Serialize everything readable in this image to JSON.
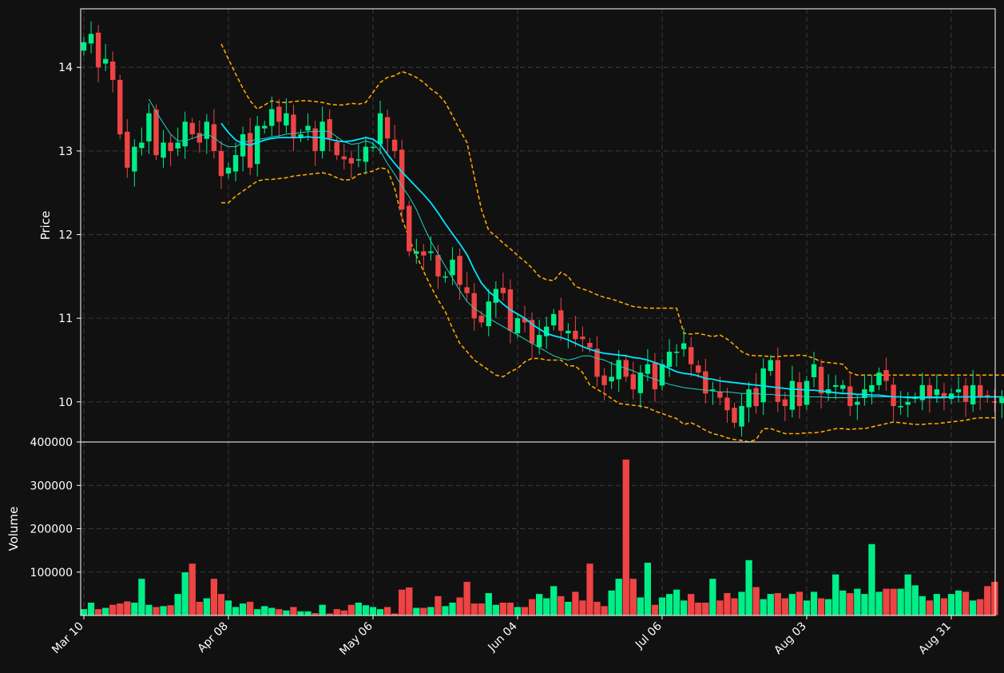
{
  "colors": {
    "background": "#111111",
    "up": "#00ee88",
    "down": "#ee4444",
    "ma_fast": "#00e5ff",
    "ma_slow": "#20d3c0",
    "band": "#ffa500",
    "grid": "#3a3a3a",
    "axis": "#ffffff",
    "text": "#ffffff"
  },
  "chart_data": [
    {
      "type": "candlestick",
      "panel": "price",
      "ylabel": "Price",
      "yticks": [
        10,
        11,
        12,
        13,
        14
      ],
      "ylim": [
        9.52,
        14.7
      ],
      "x_tick_labels": [
        "Mar 10",
        "Apr 08",
        "May 06",
        "Jun 04",
        "Jul 06",
        "Aug 03",
        "Aug 31"
      ],
      "x_tick_indices": [
        0,
        20,
        40,
        60,
        80,
        100,
        120
      ],
      "grid": true,
      "closes": [
        14.3,
        14.4,
        14.0,
        14.1,
        13.85,
        13.2,
        12.8,
        13.05,
        13.1,
        13.45,
        12.95,
        13.1,
        13.0,
        13.1,
        13.35,
        13.2,
        13.1,
        13.35,
        13.0,
        12.7,
        12.8,
        12.95,
        13.2,
        12.8,
        13.3,
        13.3,
        13.5,
        13.35,
        13.45,
        13.15,
        13.2,
        13.3,
        13.0,
        13.35,
        13.15,
        12.95,
        12.9,
        12.85,
        12.9,
        13.05,
        13.05,
        13.45,
        13.15,
        13.0,
        12.3,
        11.8,
        11.8,
        11.75,
        11.8,
        11.5,
        11.5,
        11.7,
        11.4,
        11.3,
        11.0,
        10.95,
        11.2,
        11.35,
        11.3,
        10.85,
        11.0,
        10.95,
        10.7,
        10.8,
        10.9,
        11.05,
        10.85,
        10.85,
        10.75,
        10.75,
        10.65,
        10.3,
        10.2,
        10.3,
        10.5,
        10.3,
        10.15,
        10.35,
        10.45,
        10.15,
        10.45,
        10.6,
        10.6,
        10.7,
        10.45,
        10.35,
        10.1,
        10.15,
        10.05,
        9.9,
        9.75,
        9.95,
        10.15,
        9.95,
        10.4,
        10.5,
        10.0,
        9.95,
        10.25,
        9.95,
        10.25,
        10.45,
        10.1,
        10.15,
        10.2,
        10.2,
        9.95,
        10.0,
        10.15,
        10.2,
        10.35,
        10.25,
        9.95,
        9.95,
        10.0,
        10.05,
        10.2,
        10.05,
        10.15,
        10.05,
        10.1,
        10.15,
        10.0,
        10.2,
        10.05,
        10.05,
        10.0,
        10.05
      ],
      "ma_fast": [
        null,
        null,
        null,
        null,
        null,
        null,
        null,
        null,
        null,
        null,
        null,
        null,
        null,
        null,
        null,
        null,
        null,
        null,
        null,
        13.33,
        13.22,
        13.13,
        13.09,
        13.07,
        13.1,
        13.13,
        13.15,
        13.16,
        13.16,
        13.16,
        13.16,
        13.17,
        13.16,
        13.16,
        13.14,
        13.12,
        13.11,
        13.12,
        13.14,
        13.16,
        13.14,
        13.08,
        12.96,
        12.85,
        12.75,
        12.66,
        12.57,
        12.48,
        12.38,
        12.26,
        12.13,
        12.01,
        11.89,
        11.76,
        11.58,
        11.42,
        11.32,
        11.25,
        11.17,
        11.1,
        11.05,
        11.0,
        10.93,
        10.87,
        10.82,
        10.79,
        10.77,
        10.74,
        10.7,
        10.66,
        10.63,
        10.6,
        10.58,
        10.57,
        10.56,
        10.55,
        10.53,
        10.52,
        10.5,
        10.47,
        10.44,
        10.4,
        10.36,
        10.34,
        10.33,
        10.31,
        10.28,
        10.27,
        10.25,
        10.24,
        10.23,
        10.22,
        10.21,
        10.2,
        10.19,
        10.18,
        10.17,
        10.16,
        10.15,
        10.15,
        10.14,
        10.14,
        10.13,
        10.12,
        10.11,
        10.1,
        10.1,
        10.09,
        10.09,
        10.08,
        10.08,
        10.07,
        10.06,
        10.06,
        10.05,
        10.05,
        10.05,
        10.05,
        10.05,
        10.05,
        10.06,
        10.06,
        10.06,
        10.06,
        10.06,
        10.06,
        10.06,
        10.06
      ],
      "ma_slow": [
        null,
        null,
        null,
        null,
        null,
        null,
        null,
        null,
        null,
        13.62,
        13.47,
        13.33,
        13.2,
        13.12,
        13.12,
        13.15,
        13.18,
        13.2,
        13.16,
        13.09,
        13.05,
        13.05,
        13.1,
        13.12,
        13.14,
        13.15,
        13.17,
        13.18,
        13.2,
        13.21,
        13.22,
        13.23,
        13.23,
        13.24,
        13.23,
        13.17,
        13.11,
        13.08,
        13.09,
        13.12,
        13.09,
        13.0,
        12.85,
        12.72,
        12.58,
        12.45,
        12.3,
        12.1,
        11.92,
        11.77,
        11.62,
        11.48,
        11.33,
        11.2,
        11.12,
        11.06,
        11.0,
        10.95,
        10.9,
        10.85,
        10.8,
        10.75,
        10.7,
        10.65,
        10.6,
        10.55,
        10.52,
        10.5,
        10.52,
        10.55,
        10.55,
        10.52,
        10.5,
        10.46,
        10.43,
        10.4,
        10.37,
        10.33,
        10.3,
        10.27,
        10.24,
        10.21,
        10.19,
        10.17,
        10.16,
        10.15,
        10.14,
        10.13,
        10.12,
        10.12,
        10.11,
        10.1,
        10.1,
        10.1,
        10.09,
        10.09,
        10.08,
        10.08,
        10.07,
        10.07,
        10.06,
        10.06,
        10.06,
        10.05,
        10.05,
        10.05,
        10.05,
        10.05,
        10.06,
        10.06,
        10.06,
        10.06,
        10.06,
        10.06,
        10.06,
        10.06,
        10.06,
        10.06,
        10.06,
        10.06,
        10.06,
        10.06,
        10.06,
        10.06,
        10.06,
        10.06,
        10.06,
        10.06,
        10.06
      ],
      "band_upper": [
        null,
        null,
        null,
        null,
        null,
        null,
        null,
        null,
        null,
        null,
        null,
        null,
        null,
        null,
        null,
        null,
        null,
        null,
        null,
        14.28,
        14.1,
        13.92,
        13.75,
        13.6,
        13.5,
        13.55,
        13.6,
        13.58,
        13.58,
        13.59,
        13.6,
        13.6,
        13.59,
        13.58,
        13.56,
        13.55,
        13.55,
        13.57,
        13.56,
        13.58,
        13.7,
        13.82,
        13.88,
        13.9,
        13.95,
        13.92,
        13.88,
        13.82,
        13.74,
        13.68,
        13.58,
        13.42,
        13.25,
        13.1,
        12.7,
        12.3,
        12.05,
        11.98,
        11.9,
        11.83,
        11.75,
        11.68,
        11.6,
        11.5,
        11.46,
        11.45,
        11.55,
        11.5,
        11.38,
        11.35,
        11.32,
        11.28,
        11.25,
        11.23,
        11.2,
        11.17,
        11.14,
        11.13,
        11.12,
        11.12,
        11.12,
        11.12,
        11.12,
        10.82,
        10.81,
        10.82,
        10.8,
        10.78,
        10.8,
        10.75,
        10.68,
        10.6,
        10.56,
        10.55,
        10.55,
        10.54,
        10.54,
        10.55,
        10.55,
        10.56,
        10.55,
        10.52,
        10.48,
        10.47,
        10.46,
        10.45,
        10.35,
        10.32,
        10.32,
        10.32,
        10.32,
        10.32,
        10.32,
        10.32,
        10.32,
        10.32,
        10.32,
        10.32,
        10.32,
        10.32,
        10.32,
        10.32,
        10.32,
        10.32,
        10.32,
        10.32,
        10.32,
        10.32,
        10.32
      ],
      "band_lower": [
        null,
        null,
        null,
        null,
        null,
        null,
        null,
        null,
        null,
        null,
        null,
        null,
        null,
        null,
        null,
        null,
        null,
        null,
        null,
        12.38,
        12.38,
        12.46,
        12.52,
        12.58,
        12.64,
        12.66,
        12.66,
        12.67,
        12.68,
        12.7,
        12.71,
        12.72,
        12.73,
        12.74,
        12.72,
        12.68,
        12.65,
        12.66,
        12.72,
        12.74,
        12.76,
        12.8,
        12.78,
        12.55,
        12.2,
        11.95,
        11.75,
        11.56,
        11.38,
        11.22,
        11.08,
        10.88,
        10.7,
        10.6,
        10.5,
        10.44,
        10.38,
        10.32,
        10.3,
        10.36,
        10.4,
        10.48,
        10.52,
        10.52,
        10.5,
        10.5,
        10.5,
        10.43,
        10.43,
        10.35,
        10.2,
        10.15,
        10.1,
        10.04,
        9.98,
        9.97,
        9.96,
        9.95,
        9.93,
        9.89,
        9.86,
        9.83,
        9.8,
        9.73,
        9.75,
        9.71,
        9.66,
        9.62,
        9.6,
        9.57,
        9.55,
        9.54,
        9.52,
        9.55,
        9.68,
        9.68,
        9.65,
        9.62,
        9.62,
        9.62,
        9.63,
        9.63,
        9.64,
        9.66,
        9.68,
        9.68,
        9.67,
        9.68,
        9.68,
        9.7,
        9.72,
        9.74,
        9.76,
        9.75,
        9.74,
        9.73,
        9.73,
        9.74,
        9.74,
        9.75,
        9.76,
        9.77,
        9.78,
        9.8,
        9.81,
        9.81,
        9.81
      ]
    },
    {
      "type": "bar",
      "panel": "volume",
      "ylabel": "Volume",
      "yticks": [
        100000,
        200000,
        300000,
        400000
      ],
      "ylim": [
        0,
        400000
      ],
      "grid": true,
      "values": [
        15000,
        30000,
        15000,
        18000,
        25000,
        28000,
        33000,
        30000,
        85000,
        25000,
        20000,
        22000,
        24000,
        50000,
        100000,
        120000,
        32000,
        40000,
        85000,
        50000,
        35000,
        20000,
        28000,
        32000,
        15000,
        22000,
        18000,
        15000,
        12000,
        20000,
        10000,
        10000,
        6000,
        25000,
        5000,
        15000,
        12000,
        25000,
        30000,
        24000,
        20000,
        15000,
        20000,
        5000,
        60000,
        65000,
        18000,
        18000,
        20000,
        45000,
        22000,
        30000,
        42000,
        78000,
        28000,
        28000,
        52000,
        25000,
        30000,
        30000,
        20000,
        20000,
        38000,
        50000,
        40000,
        68000,
        45000,
        32000,
        55000,
        35000,
        120000,
        32000,
        22000,
        58000,
        85000,
        360000,
        85000,
        42000,
        122000,
        25000,
        42000,
        50000,
        60000,
        35000,
        50000,
        30000,
        30000,
        85000,
        35000,
        52000,
        40000,
        55000,
        128000,
        66000,
        38000,
        50000,
        52000,
        40000,
        50000,
        55000,
        35000,
        55000,
        40000,
        38000,
        95000,
        58000,
        52000,
        62000,
        50000,
        165000,
        55000,
        62000,
        62000,
        62000,
        95000,
        70000,
        45000,
        35000,
        50000,
        40000,
        50000,
        58000,
        55000,
        35000,
        38000,
        68000,
        78000
      ],
      "colors_up_down": "matches candle direction"
    }
  ]
}
